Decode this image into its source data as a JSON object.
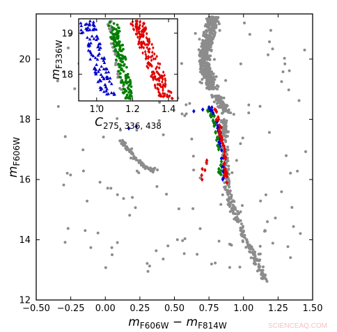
{
  "chart_data": [
    {
      "id": "main",
      "type": "scatter",
      "xlabel": "m_F606W − m_F814W",
      "ylabel": "m_F606W",
      "xlim": [
        -0.5,
        1.5
      ],
      "ylim": [
        21.5,
        12.0
      ],
      "y_inverted": true,
      "xticks": [
        -0.5,
        -0.25,
        0.0,
        0.25,
        0.5,
        0.75,
        1.0,
        1.25,
        1.5
      ],
      "xtick_labels": [
        "−0.50",
        "−0.25",
        "0.00",
        "0.25",
        "0.50",
        "0.75",
        "1.00",
        "1.25",
        "1.50"
      ],
      "yticks": [
        12,
        14,
        16,
        18,
        20
      ],
      "ytick_labels": [
        "12",
        "14",
        "16",
        "18",
        "20"
      ],
      "grid": false,
      "series": [
        {
          "color": "#8c8c8c",
          "marker": "circle",
          "components": [
            {
              "kind": "main-sequence",
              "ys": [
                [
                  19.0,
                  0.78,
                  0.035
                ],
                [
                  19.4,
                  0.74,
                  0.035
                ],
                [
                  19.8,
                  0.72,
                  0.035
                ],
                [
                  20.2,
                  0.72,
                  0.035
                ],
                [
                  20.6,
                  0.74,
                  0.035
                ],
                [
                  21.0,
                  0.76,
                  0.04
                ],
                [
                  21.4,
                  0.79,
                  0.04
                ]
              ],
              "count": 560
            },
            {
              "kind": "subgiant-branch",
              "ys": [
                [
                  18.2,
                  0.88,
                  0.03
                ],
                [
                  18.5,
                  0.84,
                  0.03
                ],
                [
                  18.8,
                  0.8,
                  0.03
                ]
              ],
              "count": 90
            },
            {
              "kind": "red-giant-branch",
              "ys": [
                [
                  18.0,
                  0.86,
                  0.022
                ],
                [
                  17.0,
                  0.86,
                  0.022
                ],
                [
                  16.0,
                  0.88,
                  0.022
                ],
                [
                  15.0,
                  0.92,
                  0.022
                ],
                [
                  14.5,
                  0.97,
                  0.025
                ],
                [
                  14.0,
                  1.02,
                  0.025
                ],
                [
                  13.5,
                  1.07,
                  0.025
                ],
                [
                  13.0,
                  1.12,
                  0.025
                ],
                [
                  12.6,
                  1.16,
                  0.025
                ]
              ],
              "count": 260
            },
            {
              "kind": "horizontal-branch",
              "pts": [
                [
                  0.12,
                  17.3
                ],
                [
                  0.14,
                  17.15
                ],
                [
                  0.17,
                  16.95
                ],
                [
                  0.2,
                  16.8
                ],
                [
                  0.24,
                  16.6
                ],
                [
                  0.28,
                  16.45
                ],
                [
                  0.32,
                  16.35
                ],
                [
                  0.37,
                  16.25
                ]
              ],
              "count": 80
            },
            {
              "kind": "field",
              "xr": [
                -0.4,
                1.45
              ],
              "yr": [
                12.8,
                21.3
              ],
              "count": 160
            }
          ]
        },
        {
          "color": "#0000cc",
          "marker": "diamond",
          "pts": [
            [
              0.85,
              16.0
            ],
            [
              0.86,
              16.3
            ],
            [
              0.84,
              16.7
            ],
            [
              0.83,
              17.2
            ],
            [
              0.82,
              17.6
            ],
            [
              0.8,
              17.9
            ],
            [
              0.78,
              18.2
            ],
            [
              0.75,
              18.4
            ],
            [
              0.17,
              17.7
            ]
          ],
          "count": 40
        },
        {
          "color": "#007f00",
          "marker": "diamond",
          "pts": [
            [
              0.83,
              16.2
            ],
            [
              0.84,
              16.6
            ],
            [
              0.82,
              17.0
            ],
            [
              0.81,
              17.4
            ],
            [
              0.79,
              17.8
            ],
            [
              0.77,
              18.1
            ],
            [
              0.74,
              18.3
            ]
          ],
          "count": 25
        },
        {
          "color": "#e00000",
          "marker": "diamond",
          "pts": [
            [
              0.88,
              15.9
            ],
            [
              0.87,
              16.3
            ],
            [
              0.86,
              16.8
            ],
            [
              0.85,
              17.2
            ],
            [
              0.83,
              17.6
            ],
            [
              0.82,
              18.0
            ],
            [
              0.8,
              18.3
            ],
            [
              0.7,
              16.0
            ]
          ],
          "count": 45
        }
      ]
    },
    {
      "id": "inset",
      "type": "scatter",
      "xlabel": "C_275,336,438",
      "ylabel": "m_F336W",
      "xlim": [
        0.9,
        1.45
      ],
      "ylim": [
        19.35,
        17.35
      ],
      "y_inverted": true,
      "xticks": [
        1.0,
        1.2,
        1.4
      ],
      "xtick_labels": [
        "1.0",
        "1.2",
        "1.4"
      ],
      "yticks": [
        18,
        19
      ],
      "ytick_labels": [
        "18",
        "19"
      ],
      "grid": false,
      "series": [
        {
          "color": "#0000cc",
          "marker": "triangle",
          "band": [
            [
              19.3,
              0.94
            ],
            [
              17.5,
              1.06
            ]
          ],
          "width": 0.045,
          "count": 110
        },
        {
          "color": "#8c8c8c",
          "marker": "circle",
          "band": [
            [
              19.3,
              1.07
            ],
            [
              17.6,
              1.14
            ]
          ],
          "width": 0.012,
          "count": 40
        },
        {
          "color": "#007f00",
          "marker": "circle",
          "band": [
            [
              19.3,
              1.09
            ],
            [
              17.4,
              1.18
            ]
          ],
          "width": 0.028,
          "count": 140
        },
        {
          "color": "#e00000",
          "marker": "diamond",
          "band": [
            [
              19.3,
              1.22
            ],
            [
              17.4,
              1.39
            ]
          ],
          "width": 0.04,
          "count": 200
        }
      ]
    }
  ],
  "watermark": "SCIENCEAQ.COM"
}
